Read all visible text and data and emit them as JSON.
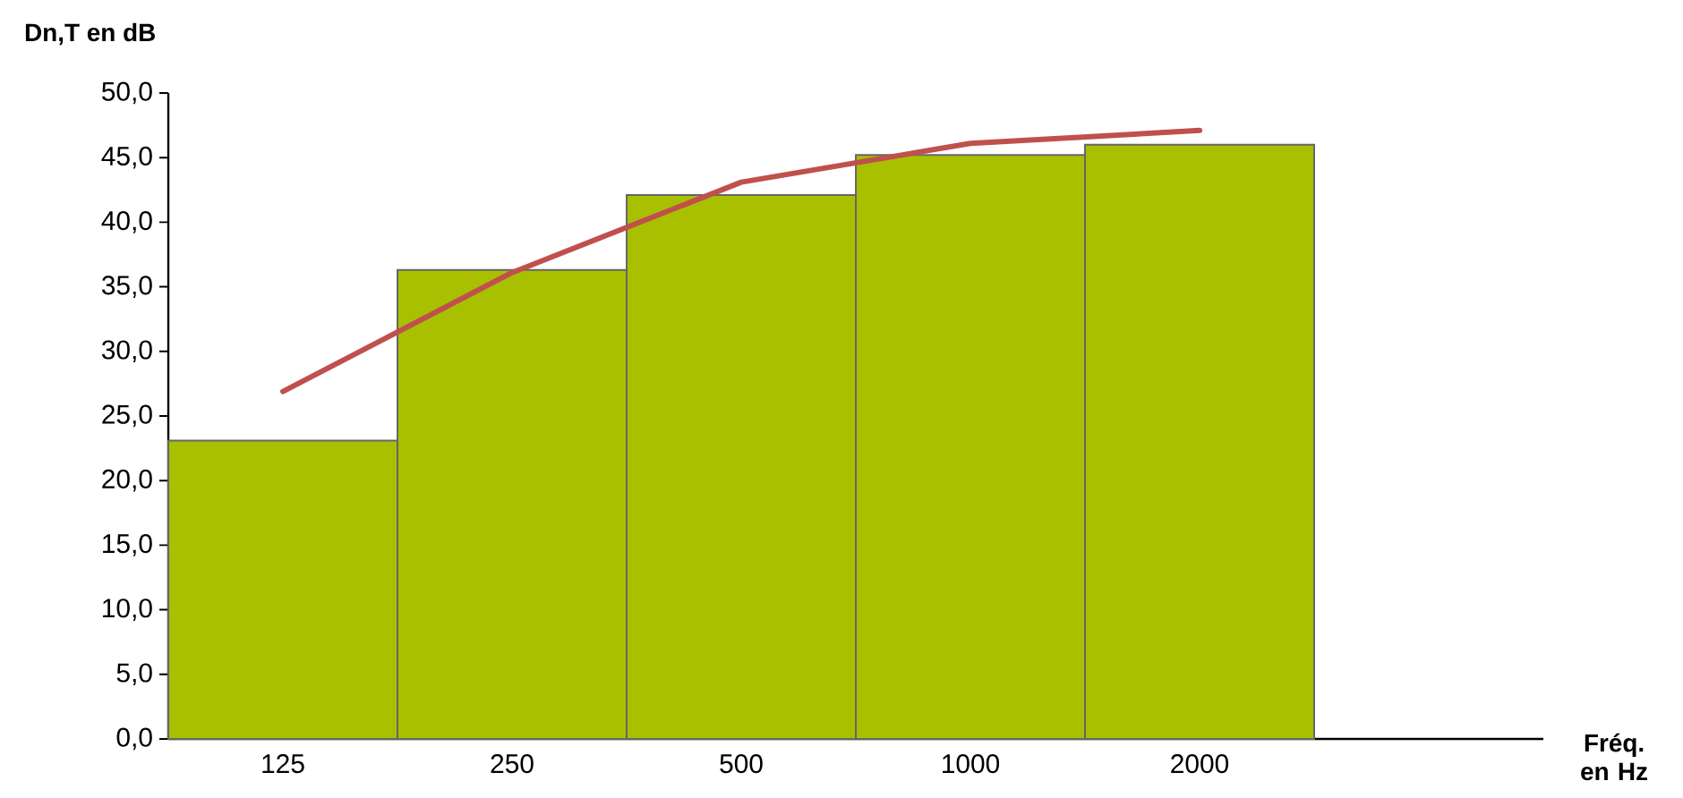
{
  "chart_data": {
    "type": "bar",
    "xlabel": "Fréq. en Hz",
    "ylabel": "Dn,T en dB",
    "categories": [
      "125",
      "250",
      "500",
      "1000",
      "2000",
      null
    ],
    "series": [
      {
        "color": "#a9c000",
        "values": [
          23.1,
          36.3,
          42.1,
          45.2,
          46.0,
          null
        ]
      },
      {
        "type": "line",
        "color": "#c0504d",
        "values": [
          26.9,
          36.1,
          43.1,
          46.1,
          47.1,
          null
        ]
      }
    ],
    "ylim": [
      0,
      50
    ],
    "yticks": [
      {
        "value": 0,
        "label": "0,0"
      },
      {
        "value": 5,
        "label": "5,0"
      },
      {
        "value": 10,
        "label": "10,0"
      },
      {
        "value": 15,
        "label": "15,0"
      },
      {
        "value": 20,
        "label": "20,0"
      },
      {
        "value": 25,
        "label": "25,0"
      },
      {
        "value": 30,
        "label": "30,0"
      },
      {
        "value": 35,
        "label": "35,0"
      },
      {
        "value": 40,
        "label": "40,0"
      },
      {
        "value": 45,
        "label": "45,0"
      },
      {
        "value": 50,
        "label": "50,0"
      }
    ],
    "grid": false
  }
}
